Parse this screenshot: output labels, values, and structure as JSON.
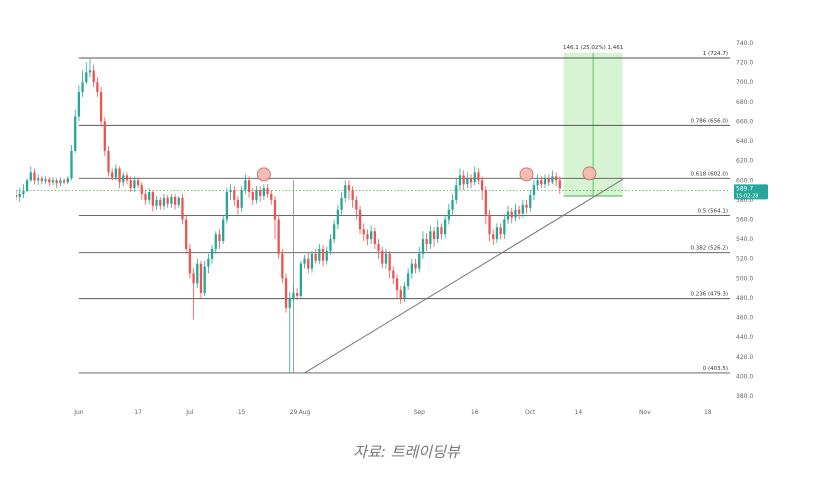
{
  "caption": "자료: 트레이딩뷰",
  "chart_data": {
    "type": "candlestick",
    "y_axis": {
      "min": 380,
      "max": 740,
      "ticks": [
        380,
        400,
        420,
        440,
        460,
        480,
        500,
        520,
        540,
        560,
        580,
        600,
        620,
        640,
        660,
        680,
        700,
        720,
        740
      ],
      "position": "right"
    },
    "x_axis": {
      "ticks": [
        {
          "label": "Jun",
          "day": 0
        },
        {
          "label": "17",
          "day": 16
        },
        {
          "label": "Jul",
          "day": 30
        },
        {
          "label": "15",
          "day": 44
        },
        {
          "label": "29",
          "day": 58
        },
        {
          "label": "Aug",
          "day": 61
        },
        {
          "label": "Sep",
          "day": 92
        },
        {
          "label": "16",
          "day": 107
        },
        {
          "label": "Oct",
          "day": 122
        },
        {
          "label": "14",
          "day": 135
        },
        {
          "label": "Nov",
          "day": 153
        },
        {
          "label": "18",
          "day": 170
        }
      ],
      "range_days": [
        -17,
        176
      ]
    },
    "fib_levels": [
      {
        "label": "1 (724.7)",
        "value": 724.7
      },
      {
        "label": "0.786 (656.0)",
        "value": 656.0
      },
      {
        "label": "0.618 (602.0)",
        "value": 602.0
      },
      {
        "label": "0.5 (564.1)",
        "value": 564.1
      },
      {
        "label": "0.382 (526.2)",
        "value": 526.2
      },
      {
        "label": "0.236 (479.3)",
        "value": 479.3
      },
      {
        "label": "0 (403.5)",
        "value": 403.5
      }
    ],
    "measure_box": {
      "label": "146.1 (25.02%) 1,461",
      "from_day": 131,
      "to_day": 147,
      "low": 584,
      "high": 730
    },
    "trendline": {
      "from_day": 61,
      "from_value": 403.5,
      "to_day": 147,
      "to_value": 601
    },
    "price_label": {
      "value": "589.7",
      "sub": "15:02:28",
      "price": 589.7
    },
    "dotted_price": 589.7,
    "circles": [
      {
        "day": 50,
        "value": 606
      },
      {
        "day": 121,
        "value": 606
      },
      {
        "day": 138,
        "value": 607
      }
    ],
    "candles": [
      [
        -17,
        585,
        583,
        590,
        580
      ],
      [
        -16,
        583,
        586,
        592,
        578
      ],
      [
        -15,
        586,
        589,
        596,
        582
      ],
      [
        -14,
        589,
        600,
        602,
        588
      ],
      [
        -13,
        600,
        608,
        614,
        598
      ],
      [
        -12,
        608,
        600,
        612,
        596
      ],
      [
        -11,
        600,
        602,
        606,
        595
      ],
      [
        -10,
        602,
        599,
        604,
        596
      ],
      [
        -9,
        599,
        601,
        604,
        596
      ],
      [
        -8,
        601,
        598,
        603,
        594
      ],
      [
        -7,
        598,
        600,
        603,
        595
      ],
      [
        -6,
        600,
        597,
        602,
        592
      ],
      [
        -5,
        597,
        600,
        603,
        594
      ],
      [
        -4,
        600,
        598,
        602,
        596
      ],
      [
        -3,
        598,
        602,
        604,
        596
      ],
      [
        -2,
        602,
        630,
        636,
        600
      ],
      [
        -1,
        630,
        665,
        672,
        628
      ],
      [
        0,
        665,
        690,
        697,
        660
      ],
      [
        1,
        690,
        700,
        712,
        685
      ],
      [
        2,
        700,
        710,
        720,
        698
      ],
      [
        3,
        710,
        712,
        724,
        705
      ],
      [
        4,
        712,
        700,
        718,
        695
      ],
      [
        5,
        700,
        690,
        705,
        685
      ],
      [
        6,
        690,
        660,
        695,
        655
      ],
      [
        7,
        660,
        630,
        664,
        625
      ],
      [
        8,
        630,
        608,
        635,
        604
      ],
      [
        9,
        608,
        603,
        612,
        600
      ],
      [
        10,
        603,
        612,
        616,
        600
      ],
      [
        11,
        612,
        598,
        614,
        592
      ],
      [
        12,
        598,
        605,
        608,
        594
      ],
      [
        13,
        605,
        600,
        608,
        596
      ],
      [
        14,
        600,
        592,
        604,
        588
      ],
      [
        15,
        592,
        600,
        604,
        588
      ],
      [
        16,
        600,
        595,
        603,
        592
      ],
      [
        17,
        595,
        586,
        598,
        580
      ],
      [
        18,
        586,
        580,
        590,
        575
      ],
      [
        19,
        580,
        588,
        592,
        576
      ],
      [
        20,
        588,
        574,
        590,
        568
      ],
      [
        21,
        574,
        580,
        584,
        570
      ],
      [
        22,
        580,
        574,
        583,
        570
      ],
      [
        23,
        574,
        582,
        586,
        570
      ],
      [
        24,
        582,
        576,
        585,
        572
      ],
      [
        25,
        576,
        583,
        586,
        572
      ],
      [
        26,
        583,
        575,
        586,
        570
      ],
      [
        27,
        575,
        582,
        584,
        572
      ],
      [
        28,
        582,
        560,
        586,
        555
      ],
      [
        29,
        560,
        530,
        565,
        525
      ],
      [
        30,
        530,
        505,
        535,
        500
      ],
      [
        31,
        505,
        495,
        510,
        458
      ],
      [
        32,
        495,
        515,
        520,
        490
      ],
      [
        33,
        515,
        485,
        518,
        480
      ],
      [
        34,
        485,
        512,
        518,
        482
      ],
      [
        35,
        512,
        520,
        525,
        505
      ],
      [
        36,
        520,
        530,
        534,
        515
      ],
      [
        37,
        530,
        545,
        548,
        525
      ],
      [
        38,
        545,
        538,
        550,
        530
      ],
      [
        39,
        538,
        560,
        564,
        535
      ],
      [
        40,
        560,
        588,
        592,
        556
      ],
      [
        41,
        588,
        590,
        596,
        580
      ],
      [
        42,
        590,
        580,
        594,
        574
      ],
      [
        43,
        580,
        572,
        584,
        565
      ],
      [
        44,
        572,
        590,
        594,
        568
      ],
      [
        45,
        590,
        600,
        606,
        586
      ],
      [
        46,
        600,
        588,
        604,
        582
      ],
      [
        47,
        588,
        580,
        592,
        575
      ],
      [
        48,
        580,
        590,
        594,
        576
      ],
      [
        49,
        590,
        584,
        594,
        578
      ],
      [
        50,
        584,
        592,
        596,
        580
      ],
      [
        51,
        592,
        586,
        596,
        582
      ],
      [
        52,
        586,
        580,
        590,
        575
      ],
      [
        53,
        580,
        560,
        584,
        540
      ],
      [
        54,
        560,
        525,
        565,
        520
      ],
      [
        55,
        525,
        500,
        530,
        495
      ],
      [
        56,
        500,
        470,
        505,
        465
      ],
      [
        57,
        470,
        480,
        486,
        403
      ],
      [
        58,
        480,
        485,
        492,
        476
      ],
      [
        59,
        485,
        482,
        490,
        478
      ],
      [
        60,
        482,
        515,
        518,
        480
      ],
      [
        61,
        515,
        520,
        524,
        510
      ],
      [
        62,
        520,
        510,
        526,
        505
      ],
      [
        63,
        510,
        525,
        528,
        506
      ],
      [
        64,
        525,
        518,
        530,
        515
      ],
      [
        65,
        518,
        530,
        535,
        515
      ],
      [
        66,
        530,
        518,
        534,
        512
      ],
      [
        67,
        518,
        528,
        532,
        514
      ],
      [
        68,
        528,
        540,
        545,
        524
      ],
      [
        69,
        540,
        555,
        560,
        536
      ],
      [
        70,
        555,
        570,
        575,
        550
      ],
      [
        71,
        570,
        582,
        588,
        565
      ],
      [
        72,
        582,
        595,
        600,
        578
      ],
      [
        73,
        595,
        590,
        600,
        580
      ],
      [
        74,
        590,
        580,
        594,
        572
      ],
      [
        75,
        580,
        570,
        584,
        560
      ],
      [
        76,
        570,
        550,
        574,
        545
      ],
      [
        77,
        550,
        545,
        556,
        538
      ],
      [
        78,
        545,
        540,
        550,
        534
      ],
      [
        79,
        540,
        548,
        554,
        535
      ],
      [
        80,
        548,
        535,
        552,
        530
      ],
      [
        81,
        535,
        528,
        540,
        520
      ],
      [
        82,
        528,
        515,
        532,
        510
      ],
      [
        83,
        515,
        525,
        530,
        510
      ],
      [
        84,
        525,
        508,
        528,
        500
      ],
      [
        85,
        508,
        500,
        512,
        494
      ],
      [
        86,
        500,
        488,
        504,
        480
      ],
      [
        87,
        488,
        480,
        492,
        474
      ],
      [
        88,
        480,
        492,
        496,
        476
      ],
      [
        89,
        492,
        505,
        510,
        488
      ],
      [
        90,
        505,
        515,
        520,
        500
      ],
      [
        91,
        515,
        510,
        520,
        505
      ],
      [
        92,
        510,
        525,
        532,
        506
      ],
      [
        93,
        525,
        540,
        548,
        520
      ],
      [
        94,
        540,
        535,
        546,
        528
      ],
      [
        95,
        535,
        548,
        554,
        530
      ],
      [
        96,
        548,
        540,
        552,
        532
      ],
      [
        97,
        540,
        552,
        560,
        536
      ],
      [
        98,
        552,
        545,
        556,
        540
      ],
      [
        99,
        545,
        560,
        565,
        541
      ],
      [
        100,
        560,
        570,
        576,
        555
      ],
      [
        101,
        570,
        580,
        586,
        565
      ],
      [
        102,
        580,
        595,
        602,
        576
      ],
      [
        103,
        595,
        605,
        612,
        590
      ],
      [
        104,
        605,
        596,
        610,
        590
      ],
      [
        105,
        596,
        602,
        608,
        592
      ],
      [
        106,
        602,
        598,
        606,
        592
      ],
      [
        107,
        598,
        608,
        614,
        595
      ],
      [
        108,
        608,
        600,
        612,
        596
      ],
      [
        109,
        600,
        590,
        604,
        580
      ],
      [
        110,
        590,
        565,
        594,
        555
      ],
      [
        111,
        565,
        545,
        570,
        538
      ],
      [
        112,
        545,
        540,
        550,
        534
      ],
      [
        113,
        540,
        552,
        556,
        536
      ],
      [
        114,
        552,
        545,
        556,
        540
      ],
      [
        115,
        545,
        560,
        565,
        540
      ],
      [
        116,
        560,
        568,
        574,
        555
      ],
      [
        117,
        568,
        562,
        572,
        556
      ],
      [
        118,
        562,
        570,
        576,
        558
      ],
      [
        119,
        570,
        566,
        574,
        560
      ],
      [
        120,
        566,
        575,
        580,
        562
      ],
      [
        121,
        575,
        572,
        580,
        566
      ],
      [
        122,
        572,
        585,
        590,
        568
      ],
      [
        123,
        585,
        595,
        600,
        580
      ],
      [
        124,
        595,
        600,
        606,
        590
      ],
      [
        125,
        600,
        596,
        604,
        592
      ],
      [
        126,
        596,
        602,
        606,
        592
      ],
      [
        127,
        602,
        598,
        606,
        594
      ],
      [
        128,
        598,
        604,
        610,
        596
      ],
      [
        129,
        604,
        600,
        608,
        594
      ],
      [
        130,
        600,
        592,
        604,
        586
      ]
    ]
  }
}
